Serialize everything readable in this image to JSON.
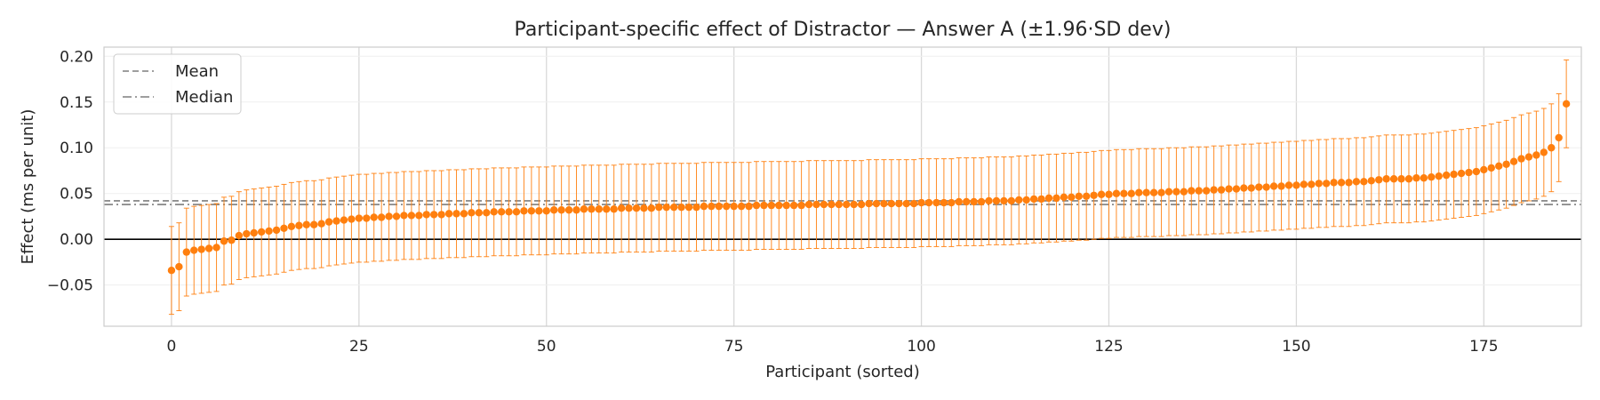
{
  "chart_data": {
    "type": "scatter",
    "title": "Participant-specific effect of Distractor — Answer A (±1.96·SD dev)",
    "xlabel": "Participant (sorted)",
    "ylabel": "Effect (ms per unit)",
    "xlim": [
      -9,
      188
    ],
    "ylim": [
      -0.095,
      0.21
    ],
    "xticks": [
      0,
      25,
      50,
      75,
      100,
      125,
      150,
      175
    ],
    "yticks": [
      -0.05,
      0.0,
      0.05,
      0.1,
      0.15,
      0.2
    ],
    "ytick_labels": [
      "−0.05",
      "0.00",
      "0.05",
      "0.10",
      "0.15",
      "0.20"
    ],
    "grid": true,
    "legend_position": "top-left",
    "colors": {
      "points": "#ff7f0e",
      "reference": "#7f7f7f",
      "zero_line": "#000000",
      "grid": "#d9d9d9",
      "frame": "#cccccc"
    },
    "reference_lines": [
      {
        "name": "Mean",
        "value": 0.042,
        "style": "dashed"
      },
      {
        "name": "Median",
        "value": 0.038,
        "style": "dashdot"
      }
    ],
    "zero_line": 0.0,
    "series": [
      {
        "error_halfwidth": 0.048,
        "x_start": 0,
        "y": [
          -0.034,
          -0.03,
          -0.014,
          -0.012,
          -0.011,
          -0.01,
          -0.009,
          -0.002,
          -0.001,
          0.004,
          0.006,
          0.007,
          0.008,
          0.009,
          0.01,
          0.012,
          0.014,
          0.015,
          0.016,
          0.016,
          0.017,
          0.019,
          0.02,
          0.021,
          0.022,
          0.023,
          0.023,
          0.024,
          0.024,
          0.025,
          0.025,
          0.026,
          0.026,
          0.026,
          0.027,
          0.027,
          0.027,
          0.028,
          0.028,
          0.028,
          0.029,
          0.029,
          0.029,
          0.03,
          0.03,
          0.03,
          0.03,
          0.031,
          0.031,
          0.031,
          0.031,
          0.032,
          0.032,
          0.032,
          0.032,
          0.033,
          0.033,
          0.033,
          0.033,
          0.033,
          0.034,
          0.034,
          0.034,
          0.034,
          0.034,
          0.035,
          0.035,
          0.035,
          0.035,
          0.035,
          0.035,
          0.036,
          0.036,
          0.036,
          0.036,
          0.036,
          0.036,
          0.036,
          0.037,
          0.037,
          0.037,
          0.037,
          0.037,
          0.037,
          0.037,
          0.038,
          0.038,
          0.038,
          0.038,
          0.038,
          0.038,
          0.038,
          0.038,
          0.039,
          0.039,
          0.039,
          0.039,
          0.039,
          0.039,
          0.039,
          0.04,
          0.04,
          0.04,
          0.04,
          0.04,
          0.041,
          0.041,
          0.041,
          0.041,
          0.042,
          0.042,
          0.042,
          0.042,
          0.043,
          0.043,
          0.044,
          0.044,
          0.045,
          0.045,
          0.046,
          0.046,
          0.047,
          0.047,
          0.048,
          0.049,
          0.049,
          0.05,
          0.05,
          0.05,
          0.051,
          0.051,
          0.051,
          0.051,
          0.052,
          0.052,
          0.052,
          0.053,
          0.053,
          0.053,
          0.054,
          0.054,
          0.055,
          0.055,
          0.056,
          0.056,
          0.057,
          0.057,
          0.058,
          0.058,
          0.059,
          0.059,
          0.06,
          0.06,
          0.061,
          0.061,
          0.062,
          0.062,
          0.062,
          0.063,
          0.063,
          0.064,
          0.065,
          0.066,
          0.066,
          0.066,
          0.066,
          0.067,
          0.067,
          0.068,
          0.069,
          0.07,
          0.071,
          0.072,
          0.073,
          0.074,
          0.076,
          0.078,
          0.08,
          0.082,
          0.085,
          0.088,
          0.09,
          0.092,
          0.095,
          0.1,
          0.111,
          0.148
        ]
      }
    ]
  }
}
